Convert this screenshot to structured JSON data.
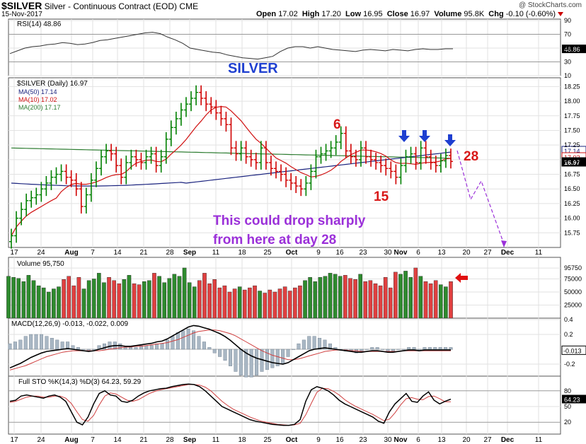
{
  "header": {
    "symbol": "$SILVER",
    "name": "Silver - Continuous Contract (EOD)",
    "exchange": "CME",
    "date": "15-Nov-2017",
    "open_label": "Open",
    "open": "17.02",
    "high_label": "High",
    "high": "17.20",
    "low_label": "Low",
    "low": "16.95",
    "close_label": "Close",
    "close": "16.97",
    "volume_label": "Volume",
    "volume": "95.8K",
    "chg_label": "Chg",
    "chg": "-0.10 (-0.60%)",
    "credit": "@ StockCharts.com"
  },
  "chart_data": [
    {
      "type": "line",
      "panel": "RSI",
      "legend": "RSI(14) 48.86",
      "ylim": [
        10,
        90
      ],
      "yticks": [
        "90",
        "70",
        "50",
        "30",
        "10"
      ],
      "current_value": "48.86",
      "series": [
        {
          "name": "RSI(14)",
          "values": [
            42,
            46,
            50,
            52,
            53,
            55,
            56,
            58,
            57,
            55,
            56,
            58,
            61,
            62,
            64,
            66,
            68,
            70,
            72,
            73,
            71,
            66,
            62,
            57,
            50,
            48,
            46,
            44,
            43,
            40,
            38,
            36,
            35,
            34,
            36,
            38,
            45,
            50,
            52,
            52,
            50,
            52,
            50,
            48,
            47,
            46,
            45,
            47,
            48,
            47,
            46,
            48,
            47,
            46,
            48,
            49,
            48,
            48,
            49,
            49
          ]
        }
      ]
    },
    {
      "type": "ohlc",
      "panel": "Price",
      "title": "SILVER",
      "legend": "$SILVER (Daily) 16.97",
      "ylim": [
        15.5,
        18.4
      ],
      "yticks": [
        "18.25",
        "18.00",
        "17.75",
        "17.50",
        "17.25",
        "17.00",
        "16.75",
        "16.50",
        "16.25",
        "16.00",
        "15.75"
      ],
      "price_tags": [
        "17.14",
        "17.02",
        "16.97"
      ],
      "x_labels": [
        "17",
        "24",
        "Aug",
        "7",
        "14",
        "21",
        "28",
        "Sep",
        "11",
        "18",
        "25",
        "Oct",
        "9",
        "16",
        "23",
        "30",
        "Nov",
        "6",
        "13",
        "20",
        "27",
        "Dec",
        "11"
      ],
      "close": [
        15.7,
        16.0,
        16.15,
        16.3,
        16.35,
        16.4,
        16.5,
        16.6,
        16.7,
        16.75,
        16.8,
        16.7,
        16.65,
        16.5,
        16.2,
        16.4,
        16.65,
        16.85,
        17.05,
        17.15,
        17.1,
        16.9,
        16.7,
        16.95,
        17.05,
        17.0,
        16.95,
        17.05,
        17.1,
        16.9,
        17.05,
        17.35,
        17.55,
        17.7,
        17.85,
        17.95,
        18.05,
        18.15,
        18.05,
        17.95,
        17.9,
        17.8,
        17.7,
        17.6,
        17.2,
        17.1,
        17.2,
        17.05,
        17.0,
        16.95,
        17.2,
        16.95,
        16.85,
        16.8,
        16.75,
        16.65,
        16.6,
        16.55,
        16.5,
        16.6,
        16.8,
        17.05,
        17.1,
        17.15,
        17.2,
        17.3,
        17.45,
        17.15,
        17.05,
        17.0,
        17.2,
        17.05,
        17.0,
        16.95,
        16.9,
        16.85,
        16.8,
        16.7,
        16.9,
        17.05,
        17.1,
        16.95,
        17.2,
        17.05,
        16.95,
        16.9,
        16.98,
        17.07,
        16.97
      ],
      "series": [
        {
          "name": "MA(50)",
          "value": "17.14"
        },
        {
          "name": "MA(10)",
          "value": "17.02"
        },
        {
          "name": "MA(200)",
          "value": "17.17"
        }
      ],
      "annotations": {
        "day6": "6",
        "day15": "15",
        "day28": "28",
        "note_line1": "This could drop sharply",
        "note_line2": "from here at day 28"
      }
    },
    {
      "type": "bar",
      "panel": "Volume",
      "legend": "Volume 95,750",
      "yticks": [
        "95750",
        "75000",
        "50000",
        "25000"
      ],
      "current_value": "95750",
      "values": [
        80,
        78,
        76,
        70,
        82,
        72,
        62,
        58,
        50,
        56,
        60,
        74,
        80,
        62,
        78,
        56,
        72,
        75,
        86,
        68,
        78,
        72,
        66,
        74,
        82,
        66,
        64,
        70,
        72,
        86,
        80,
        68,
        76,
        84,
        80,
        96,
        68,
        60,
        72,
        86,
        66,
        74,
        58,
        62,
        50,
        56,
        60,
        54,
        58,
        62,
        52,
        48,
        54,
        50,
        56,
        60,
        52,
        58,
        62,
        72,
        78,
        70,
        78,
        80,
        86,
        84,
        80,
        82,
        76,
        74,
        84,
        70,
        72,
        66,
        62,
        78,
        58,
        88,
        84,
        90,
        78,
        96,
        80,
        70,
        66,
        72,
        64,
        60,
        70
      ]
    },
    {
      "type": "line",
      "panel": "MACD",
      "legend": "MACD(12,26,9) -0.013, -0.022, 0.009",
      "yticks": [
        "0.4",
        "0.2",
        "-0.2"
      ],
      "current_value": "-0.013",
      "series": [
        {
          "name": "MACD",
          "values": [
            -0.25,
            -0.22,
            -0.19,
            -0.15,
            -0.11,
            -0.08,
            -0.05,
            -0.03,
            -0.02,
            -0.01,
            0.0,
            0.01,
            0.0,
            -0.01,
            -0.02,
            -0.03,
            -0.02,
            0.0,
            0.02,
            0.04,
            0.05,
            0.05,
            0.04,
            0.04,
            0.05,
            0.06,
            0.07,
            0.08,
            0.1,
            0.11,
            0.14,
            0.18,
            0.22,
            0.26,
            0.3,
            0.32,
            0.31,
            0.29,
            0.27,
            0.24,
            0.21,
            0.17,
            0.12,
            0.06,
            0.0,
            -0.05,
            -0.09,
            -0.12,
            -0.14,
            -0.16,
            -0.18,
            -0.19,
            -0.2,
            -0.18,
            -0.14,
            -0.1,
            -0.06,
            -0.02,
            0.0,
            0.01,
            0.02,
            0.01,
            0.0,
            -0.01,
            -0.02,
            -0.03,
            -0.04,
            -0.04,
            -0.03,
            -0.02,
            -0.02,
            -0.03,
            -0.04,
            -0.04,
            -0.03,
            -0.02,
            -0.01,
            -0.01,
            -0.02,
            -0.01,
            -0.01,
            -0.01,
            -0.01,
            -0.01,
            -0.01
          ]
        },
        {
          "name": "Signal",
          "values": [
            -0.28,
            -0.26,
            -0.24,
            -0.22,
            -0.19,
            -0.16,
            -0.13,
            -0.1,
            -0.08,
            -0.06,
            -0.04,
            -0.03,
            -0.02,
            -0.02,
            -0.02,
            -0.02,
            -0.02,
            -0.02,
            -0.01,
            0.0,
            0.01,
            0.02,
            0.03,
            0.03,
            0.04,
            0.04,
            0.05,
            0.06,
            0.07,
            0.08,
            0.09,
            0.11,
            0.13,
            0.16,
            0.19,
            0.22,
            0.24,
            0.25,
            0.26,
            0.26,
            0.25,
            0.23,
            0.21,
            0.18,
            0.14,
            0.1,
            0.06,
            0.02,
            -0.02,
            -0.05,
            -0.08,
            -0.1,
            -0.12,
            -0.14,
            -0.14,
            -0.13,
            -0.11,
            -0.09,
            -0.07,
            -0.05,
            -0.03,
            -0.02,
            -0.01,
            -0.01,
            -0.01,
            -0.02,
            -0.02,
            -0.03,
            -0.03,
            -0.03,
            -0.03,
            -0.03,
            -0.03,
            -0.03,
            -0.03,
            -0.02,
            -0.02,
            -0.02,
            -0.02,
            -0.02,
            -0.02,
            -0.02,
            -0.02,
            -0.02,
            -0.02
          ]
        }
      ]
    },
    {
      "type": "line",
      "panel": "Stochastic",
      "legend": "Full STO %K(14,3) %D(3) 64.23, 59.29",
      "yticks": [
        "80",
        "50",
        "20"
      ],
      "current_value": "64.23",
      "series": [
        {
          "name": "%K",
          "values": [
            60,
            62,
            70,
            72,
            70,
            68,
            66,
            70,
            72,
            68,
            60,
            40,
            20,
            15,
            30,
            55,
            75,
            80,
            72,
            70,
            60,
            58,
            62,
            70,
            76,
            80,
            82,
            84,
            85,
            88,
            90,
            92,
            93,
            92,
            88,
            80,
            70,
            60,
            50,
            45,
            40,
            35,
            30,
            25,
            22,
            20,
            18,
            16,
            15,
            14,
            14,
            16,
            25,
            60,
            82,
            88,
            85,
            80,
            72,
            62,
            55,
            50,
            45,
            40,
            35,
            30,
            22,
            18,
            40,
            55,
            65,
            75,
            60,
            58,
            70,
            78,
            62,
            55,
            60,
            64
          ]
        },
        {
          "name": "%D",
          "values": [
            58,
            60,
            64,
            68,
            70,
            70,
            68,
            68,
            70,
            70,
            66,
            56,
            40,
            25,
            22,
            33,
            53,
            70,
            76,
            74,
            68,
            62,
            60,
            63,
            69,
            75,
            79,
            82,
            84,
            86,
            88,
            90,
            92,
            92,
            91,
            87,
            80,
            70,
            60,
            52,
            45,
            40,
            35,
            30,
            26,
            22,
            20,
            18,
            16,
            15,
            14,
            15,
            18,
            34,
            56,
            77,
            85,
            84,
            79,
            72,
            63,
            56,
            50,
            45,
            40,
            35,
            29,
            23,
            26,
            38,
            53,
            65,
            67,
            64,
            63,
            69,
            70,
            65,
            59,
            59
          ]
        }
      ]
    }
  ],
  "colors": {
    "up": "#008000",
    "down": "#d00000",
    "ma50": "#1a237e",
    "ma10": "#d01010",
    "ma200": "#2e7d32",
    "annotation_blue": "#1e3fd0",
    "annotation_red": "#d81818",
    "annotation_purple": "#9b30d9",
    "vol_up": "#2e8b2e",
    "vol_down": "#e04040"
  },
  "icons": [
    "down-arrow-icon",
    "left-arrow-icon"
  ]
}
